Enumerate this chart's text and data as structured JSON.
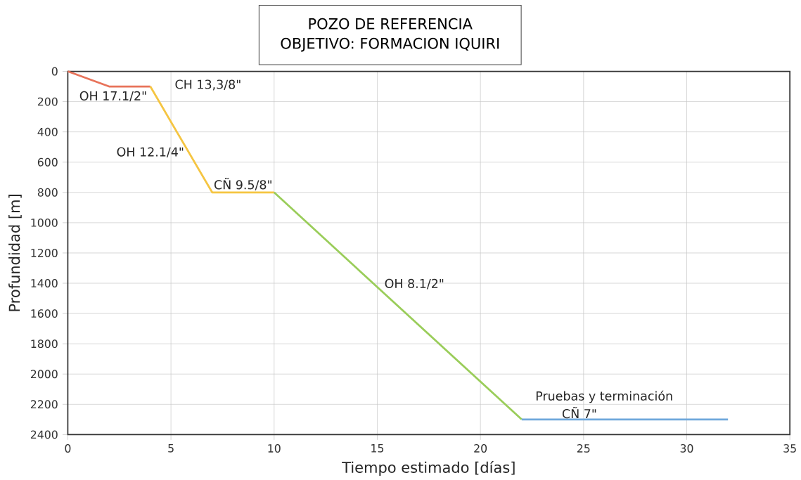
{
  "chart_data": {
    "type": "line",
    "title": "POZO DE REFERENCIA",
    "subtitle": "OBJETIVO: FORMACION IQUIRI",
    "xlabel": "Tiempo estimado [días]",
    "ylabel": "Profundidad [m]",
    "xlim": [
      0,
      35
    ],
    "xticks": [
      0,
      5,
      10,
      15,
      20,
      25,
      30,
      35
    ],
    "ylim": [
      2400,
      0
    ],
    "yticks": [
      0,
      200,
      400,
      600,
      800,
      1000,
      1200,
      1400,
      1600,
      1800,
      2000,
      2200,
      2400
    ],
    "grid": true,
    "marker": "none",
    "line_style": "solid",
    "series": [
      {
        "color": "#e8735a",
        "x": [
          0,
          2,
          4
        ],
        "values": [
          0,
          100,
          100
        ]
      },
      {
        "color": "#f5c542",
        "x": [
          4,
          7,
          10
        ],
        "values": [
          100,
          800,
          800
        ]
      },
      {
        "color": "#9acd5a",
        "x": [
          10,
          22
        ],
        "values": [
          800,
          2300
        ]
      },
      {
        "color": "#6fa8dc",
        "x": [
          22,
          32
        ],
        "values": [
          2300,
          2300
        ]
      }
    ],
    "annotations": [
      "OH 17.1/2\"",
      "CH 13,3/8\"",
      "OH 12.1/4\"",
      "CÑ 9.5/8\"",
      "OH 8.1/2\"",
      "Pruebas y terminación",
      "CÑ 7\""
    ]
  }
}
